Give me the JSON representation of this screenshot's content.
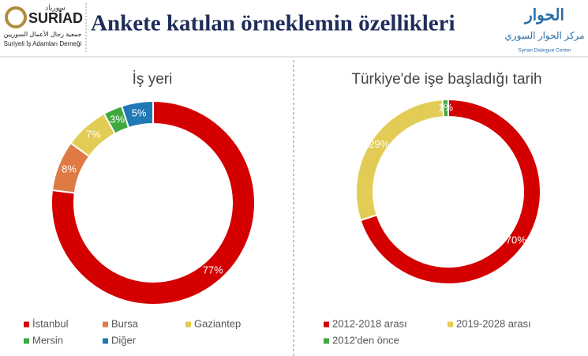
{
  "header": {
    "title": "Ankete katılan örneklemin özellikleri",
    "left_logo": {
      "arabic_name": "سورياد",
      "name": "SURİAD",
      "arabic_subtitle": "جمعية رجال الأعمال السوريين",
      "subtitle": "Suriyeli İş Adamları Derneği"
    },
    "right_logo": {
      "arabic_name": "الحوار",
      "arabic_subtitle": "مركز الحوار السوري",
      "subtitle": "Syrian Dialogue Center"
    }
  },
  "chart_data": [
    {
      "type": "donut",
      "title": "İş yeri",
      "categories": [
        "İstanbul",
        "Bursa",
        "Gaziantep",
        "Mersin",
        "Diğer"
      ],
      "values": [
        77,
        8,
        7,
        3,
        5
      ],
      "value_labels": [
        "77%",
        "8%",
        "7%",
        "3%",
        "5%"
      ],
      "colors": [
        "#d40000",
        "#e07a45",
        "#e3cc55",
        "#3fa83f",
        "#2079b4"
      ]
    },
    {
      "type": "donut",
      "title": "Türkiye'de işe başladığı tarih",
      "categories": [
        "2012-2018 arası",
        "2019-2028 arası",
        "2012'den önce"
      ],
      "values": [
        70,
        29,
        1
      ],
      "value_labels": [
        "70%",
        "29%",
        "1%"
      ],
      "colors": [
        "#d40000",
        "#e3cc55",
        "#3fa83f"
      ]
    }
  ]
}
